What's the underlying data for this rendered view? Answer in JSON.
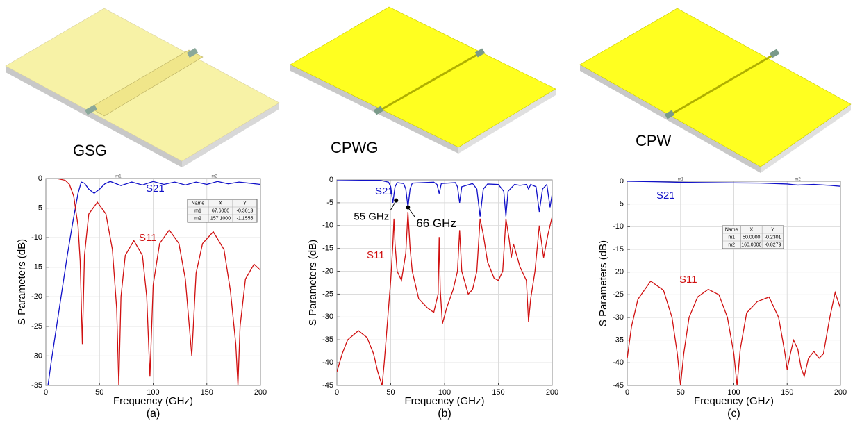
{
  "structures": [
    {
      "label": "GSG"
    },
    {
      "label": "CPWG"
    },
    {
      "label": "CPW"
    }
  ],
  "chart_data": [
    {
      "type": "line",
      "caption": "(a)",
      "xlabel": "Frequency (GHz)",
      "ylabel": "S Parameters (dB)",
      "xlim": [
        0,
        200
      ],
      "ylim": [
        -35,
        0
      ],
      "xticks": [
        0,
        50,
        100,
        150,
        200
      ],
      "yticks": [
        0,
        -5,
        -10,
        -15,
        -20,
        -25,
        -30,
        -35
      ],
      "grid": true,
      "series": [
        {
          "name": "S21",
          "color": "#1010c8",
          "x": [
            2,
            5,
            10,
            15,
            20,
            25,
            30,
            33,
            36,
            40,
            45,
            50,
            55,
            60,
            70,
            80,
            90,
            100,
            110,
            120,
            130,
            140,
            150,
            160,
            170,
            180,
            190,
            200
          ],
          "values": [
            -35,
            -31,
            -25,
            -19,
            -13,
            -7.5,
            -2.5,
            -0.6,
            -0.8,
            -1.8,
            -2.5,
            -1.8,
            -0.9,
            -0.5,
            -1.2,
            -0.6,
            -1.1,
            -0.5,
            -1.0,
            -0.6,
            -1.1,
            -0.6,
            -1.0,
            -0.5,
            -0.9,
            -0.6,
            -0.8,
            -1.0
          ]
        },
        {
          "name": "S11",
          "color": "#d01010",
          "x": [
            0,
            10,
            18,
            22,
            26,
            30,
            32,
            34,
            36,
            40,
            48,
            56,
            62,
            66,
            68,
            70,
            74,
            82,
            90,
            94,
            97,
            100,
            106,
            115,
            124,
            130,
            136,
            140,
            146,
            156,
            166,
            172,
            177,
            179,
            181,
            186,
            194,
            200
          ],
          "values": [
            0,
            0,
            -0.3,
            -1,
            -3,
            -8,
            -14,
            -28,
            -13,
            -6,
            -4,
            -6,
            -12,
            -22,
            -35,
            -20,
            -13,
            -10.5,
            -13,
            -20,
            -33.5,
            -18,
            -11,
            -8.7,
            -11,
            -17,
            -30,
            -16,
            -11,
            -9,
            -12,
            -19,
            -28,
            -35,
            -25,
            -17,
            -14.5,
            -15.5
          ]
        }
      ],
      "marker_table": {
        "columns": [
          "Name",
          "X",
          "Y"
        ],
        "rows": [
          [
            "m1",
            "67.6000",
            "-0.3613"
          ],
          [
            "m2",
            "157.1000",
            "-1.1555"
          ]
        ]
      }
    },
    {
      "type": "line",
      "caption": "(b)",
      "xlabel": "Frequency (GHz)",
      "ylabel": "S Parameters (dB)",
      "xlim": [
        0,
        200
      ],
      "ylim": [
        -45,
        0
      ],
      "xticks": [
        0,
        50,
        100,
        150,
        200
      ],
      "yticks": [
        0,
        -5,
        -10,
        -15,
        -20,
        -25,
        -30,
        -35,
        -40,
        -45
      ],
      "grid": true,
      "series": [
        {
          "name": "S21",
          "color": "#1010c8",
          "x": [
            0,
            40,
            48,
            50,
            52,
            54,
            56,
            62,
            64,
            66,
            68,
            70,
            90,
            93,
            95,
            97,
            110,
            112,
            114,
            116,
            126,
            130,
            133,
            136,
            140,
            150,
            155,
            157,
            159,
            165,
            170,
            176,
            178,
            180,
            185,
            188,
            191,
            195,
            198,
            200
          ],
          "values": [
            0,
            -0.1,
            -0.5,
            -1.5,
            -5,
            -1.5,
            -0.6,
            -0.8,
            -2,
            -6,
            -2,
            -0.7,
            -0.5,
            -1,
            -3,
            -0.8,
            -0.6,
            -1.5,
            -5,
            -1.5,
            -0.8,
            -2,
            -8,
            -2,
            -0.9,
            -1,
            -2.5,
            -8,
            -2.5,
            -1,
            -1.2,
            -1,
            -2,
            -1,
            -1.5,
            -7,
            -2,
            -1,
            -6,
            -3
          ]
        },
        {
          "name": "S11",
          "color": "#d01010",
          "x": [
            0,
            5,
            10,
            20,
            28,
            34,
            38,
            42,
            44,
            46,
            48,
            50,
            52,
            53,
            54,
            56,
            60,
            64,
            66,
            68,
            70,
            76,
            84,
            90,
            94,
            95,
            96,
            98,
            102,
            108,
            112,
            114,
            116,
            122,
            126,
            130,
            133,
            136,
            140,
            146,
            150,
            154,
            157,
            160,
            162,
            164,
            170,
            176,
            178,
            180,
            184,
            188,
            192,
            196,
            200
          ],
          "values": [
            -42,
            -38,
            -35,
            -33,
            -34.5,
            -38,
            -42,
            -45,
            -40,
            -34,
            -28,
            -22,
            -14,
            -8.5,
            -14,
            -20,
            -22,
            -16,
            -7,
            -15,
            -20,
            -26,
            -28,
            -29,
            -25,
            -12.5,
            -24,
            -31.5,
            -28,
            -24,
            -20,
            -11,
            -20,
            -25,
            -24,
            -20,
            -8.5,
            -12,
            -18,
            -21.5,
            -22,
            -20,
            -8.5,
            -13,
            -17,
            -14,
            -19,
            -22,
            -31,
            -26,
            -20,
            -10,
            -17,
            -12,
            -8
          ]
        }
      ],
      "annotations": [
        {
          "text": "55 GHz",
          "x": 55,
          "y": -4.5
        },
        {
          "text": "66 GHz",
          "x": 66,
          "y": -6
        }
      ]
    },
    {
      "type": "line",
      "caption": "(c)",
      "xlabel": "Frequency (GHz)",
      "ylabel": "S Parameters (dB)",
      "xlim": [
        0,
        200
      ],
      "ylim": [
        -45,
        0
      ],
      "xticks": [
        0,
        50,
        100,
        150,
        200
      ],
      "yticks": [
        0,
        -5,
        -10,
        -15,
        -20,
        -25,
        -30,
        -35,
        -40,
        -45
      ],
      "grid": true,
      "series": [
        {
          "name": "S21",
          "color": "#1010c8",
          "x": [
            0,
            25,
            50,
            75,
            100,
            125,
            150,
            160,
            175,
            190,
            200
          ],
          "values": [
            0,
            -0.1,
            -0.23,
            -0.3,
            -0.35,
            -0.4,
            -0.6,
            -0.83,
            -0.7,
            -0.9,
            -1.1
          ]
        },
        {
          "name": "S11",
          "color": "#d01010",
          "x": [
            0,
            4,
            10,
            22,
            34,
            42,
            47,
            50,
            53,
            58,
            66,
            76,
            86,
            94,
            100,
            103,
            106,
            112,
            122,
            133,
            142,
            148,
            150,
            153,
            156,
            160,
            163,
            166,
            170,
            175,
            180,
            184,
            190,
            195,
            200
          ],
          "values": [
            -39,
            -32,
            -26,
            -22,
            -24,
            -30,
            -38,
            -45,
            -38,
            -30,
            -25.5,
            -23.8,
            -25,
            -30,
            -38,
            -45,
            -37,
            -29,
            -26.5,
            -25.5,
            -30,
            -38,
            -41.5,
            -38,
            -35,
            -37,
            -41,
            -43,
            -39,
            -37.5,
            -39,
            -38,
            -30,
            -24.5,
            -28
          ]
        }
      ],
      "marker_table": {
        "columns": [
          "Name",
          "X",
          "Y"
        ],
        "rows": [
          [
            "m1",
            "50.0000",
            "-0.2301"
          ],
          [
            "m2",
            "160.0000",
            "-0.8279"
          ]
        ]
      }
    }
  ]
}
